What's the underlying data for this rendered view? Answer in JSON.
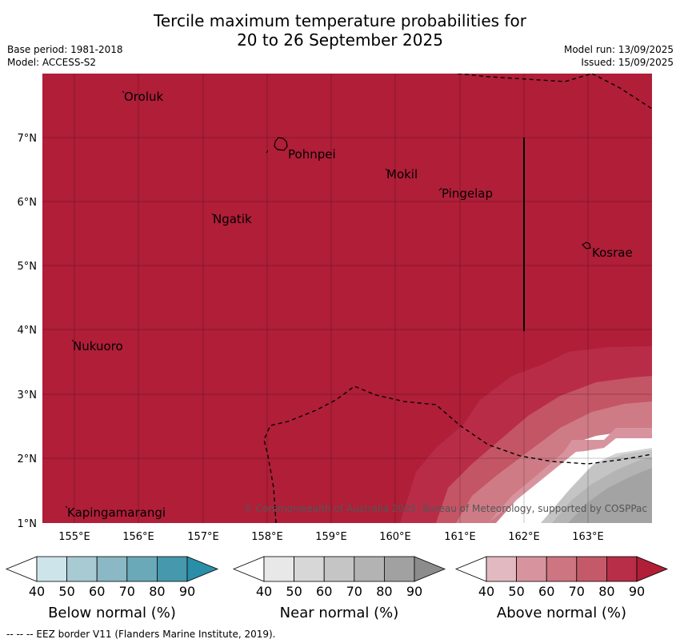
{
  "header": {
    "title_line1": "Tercile maximum temperature probabilities for",
    "title_line2": "20 to 26 September 2025",
    "base_period": "Base period: 1981-2018",
    "model": "Model: ACCESS-S2",
    "model_run": "Model run: 13/09/2025",
    "issued": "Issued: 15/09/2025"
  },
  "map": {
    "lat_labels": [
      "7°N",
      "6°N",
      "5°N",
      "4°N",
      "3°N",
      "2°N",
      "1°N"
    ],
    "lon_labels": [
      "155°E",
      "156°E",
      "157°E",
      "158°E",
      "159°E",
      "160°E",
      "161°E",
      "162°E",
      "163°E"
    ],
    "places": [
      "Oroluk",
      "Pohnpei",
      "Mokil",
      "Pingelap",
      "Ngatik",
      "Kosrae",
      "Nukuoro",
      "Kapingamarangi"
    ],
    "copyright": "© Commonwealth of Australia 2025, Bureau of Meteorology, supported by COSPPac",
    "colors": {
      "above_90": "#b01e38",
      "above_80": "#b92c48",
      "above_70": "#c45565",
      "above_60": "#ce7b86",
      "near_60": "#d4d4d4",
      "near_70": "#c4c4c4",
      "near_80": "#b4b4b4",
      "near_90": "#a3a3a3"
    }
  },
  "colorbars": [
    {
      "title": "Below normal (%)",
      "labels": [
        "40",
        "50",
        "60",
        "70",
        "80",
        "90"
      ],
      "colors": [
        "#ffffff",
        "#cde4ea",
        "#a8cad2",
        "#8ab8c4",
        "#6aa9b8",
        "#4699ac",
        "#2a8ea8"
      ]
    },
    {
      "title": "Near normal (%)",
      "labels": [
        "40",
        "50",
        "60",
        "70",
        "80",
        "90"
      ],
      "colors": [
        "#ffffff",
        "#e8e8e8",
        "#d7d7d7",
        "#c5c5c5",
        "#b3b3b3",
        "#a1a1a1",
        "#8c8c8c"
      ]
    },
    {
      "title": "Above normal (%)",
      "labels": [
        "40",
        "50",
        "60",
        "70",
        "80",
        "90"
      ],
      "colors": [
        "#ffffff",
        "#e2b9c0",
        "#d8949e",
        "#cd7581",
        "#c45a69",
        "#b82e48",
        "#b01e38"
      ]
    }
  ],
  "footer": {
    "legend_text": "--  --  -- EEZ border V11 (Flanders Marine Institute, 2019)."
  }
}
